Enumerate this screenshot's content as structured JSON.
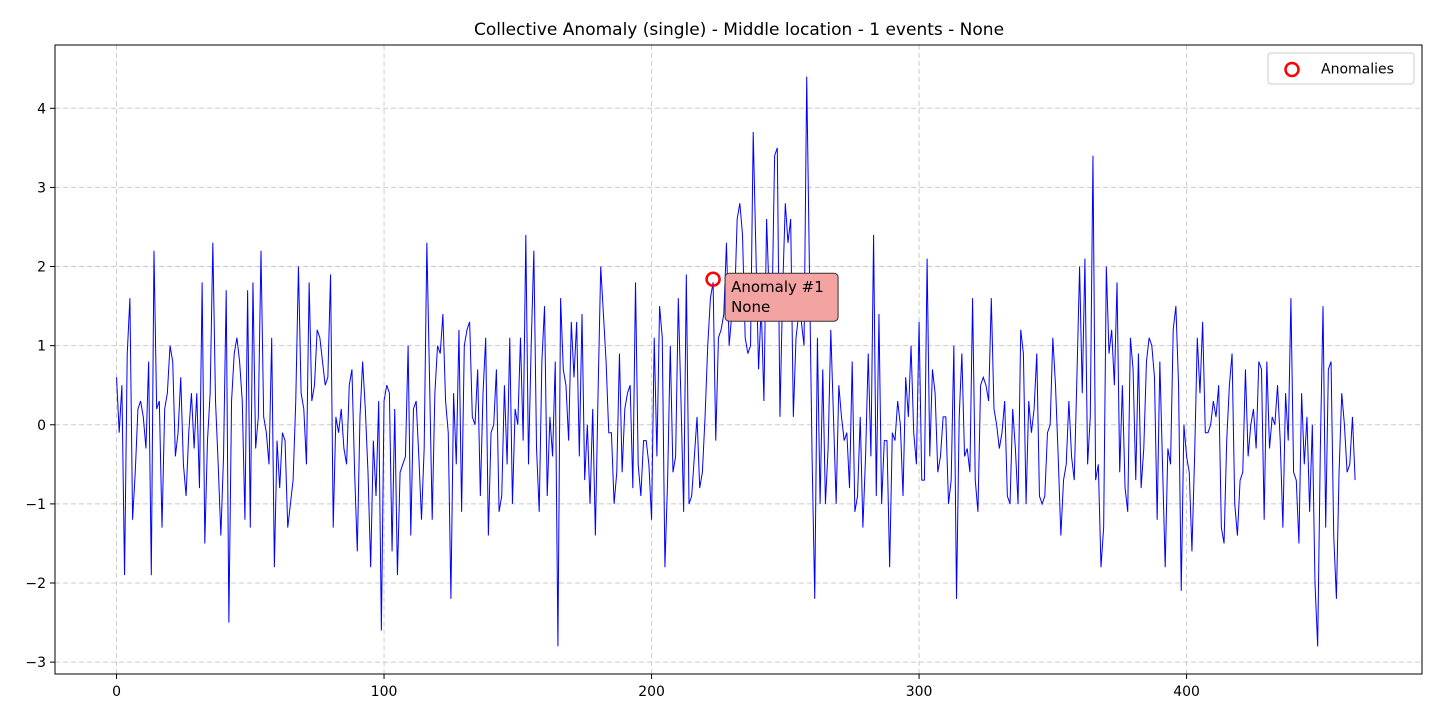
{
  "chart_data": {
    "type": "line",
    "title": "Collective Anomaly (single) - Middle location - 1 events - None",
    "xlabel": "",
    "ylabel": "",
    "xlim": [
      -23,
      488
    ],
    "ylim": [
      -3.15,
      4.8
    ],
    "x_ticks": [
      0,
      100,
      200,
      300,
      400
    ],
    "y_ticks": [
      -3,
      -2,
      -1,
      0,
      1,
      2,
      3,
      4
    ],
    "y_tick_labels": [
      "−3",
      "−2",
      "−1",
      "0",
      "1",
      "2",
      "3",
      "4"
    ],
    "grid": true,
    "legend_position": "top-right",
    "colors": {
      "line": "#0000ff",
      "anomaly": "#ff0000",
      "annotation_fill": "#f4a3a3",
      "grid": "#cccccc"
    },
    "series": [
      {
        "style": "line",
        "x_start": 0,
        "values": [
          0.6,
          -0.1,
          0.5,
          -1.9,
          0.9,
          1.6,
          -1.2,
          -0.6,
          0.2,
          0.3,
          0.1,
          -0.3,
          0.8,
          -1.9,
          2.2,
          0.2,
          0.3,
          -1.3,
          0.2,
          0.4,
          1.0,
          0.8,
          -0.4,
          -0.1,
          0.6,
          -0.5,
          -0.9,
          -0.1,
          0.4,
          -0.3,
          0.4,
          -0.8,
          1.8,
          -1.5,
          -0.2,
          0.4,
          2.3,
          0.3,
          -0.5,
          -1.4,
          -0.4,
          1.7,
          -2.5,
          0.3,
          0.9,
          1.1,
          0.8,
          0.3,
          -1.2,
          1.7,
          -1.3,
          1.8,
          -0.3,
          0.1,
          2.2,
          0.1,
          -0.1,
          -0.5,
          1.1,
          -1.8,
          -0.2,
          -0.8,
          -0.1,
          -0.2,
          -1.3,
          -1.0,
          -0.7,
          0.3,
          2.0,
          0.4,
          0.2,
          -0.5,
          1.8,
          0.3,
          0.5,
          1.2,
          1.1,
          0.8,
          0.5,
          0.6,
          1.9,
          -1.3,
          0.1,
          -0.1,
          0.2,
          -0.3,
          -0.5,
          0.5,
          0.7,
          -0.6,
          -1.6,
          0.1,
          0.8,
          0.2,
          -0.6,
          -1.8,
          -0.2,
          -0.9,
          0.3,
          -2.6,
          0.3,
          0.5,
          0.4,
          -1.6,
          0.2,
          -1.9,
          -0.6,
          -0.5,
          -0.4,
          1.0,
          -1.4,
          0.2,
          0.3,
          -0.4,
          -1.2,
          -0.3,
          2.3,
          0.6,
          -1.2,
          0.4,
          1.0,
          0.9,
          1.4,
          0.3,
          -0.1,
          -2.2,
          0.4,
          -0.5,
          1.2,
          -1.1,
          1.0,
          1.2,
          1.3,
          0.1,
          0.0,
          0.7,
          -0.9,
          0.4,
          1.1,
          -1.4,
          -0.1,
          0.0,
          0.7,
          -1.1,
          -0.9,
          0.5,
          -0.5,
          1.1,
          -1.0,
          0.2,
          0.0,
          1.1,
          -0.2,
          2.4,
          -0.5,
          1.0,
          2.2,
          -0.3,
          -1.1,
          0.8,
          1.5,
          -0.9,
          0.1,
          -0.4,
          0.8,
          -2.8,
          1.6,
          0.7,
          0.5,
          -0.2,
          1.3,
          0.6,
          1.3,
          -0.4,
          1.4,
          -0.7,
          0.0,
          -1.0,
          0.2,
          -1.4,
          0.4,
          2.0,
          1.4,
          0.8,
          -0.1,
          -0.1,
          -1.0,
          -0.6,
          0.9,
          -0.6,
          0.2,
          0.4,
          0.5,
          -0.8,
          1.8,
          -0.5,
          -0.9,
          -0.2,
          -0.2,
          -0.5,
          -1.2,
          1.1,
          -0.4,
          1.5,
          1.1,
          -1.8,
          -0.7,
          1.0,
          -0.6,
          -0.4,
          1.6,
          0.3,
          -1.1,
          1.9,
          -1.0,
          -0.9,
          -0.4,
          0.1,
          -0.8,
          -0.6,
          0.1,
          1.0,
          1.6,
          1.8,
          -0.2,
          1.1,
          1.2,
          1.4,
          2.3,
          1.0,
          1.4,
          1.5,
          2.6,
          2.8,
          2.4,
          1.1,
          0.9,
          1.0,
          3.7,
          2.2,
          0.7,
          1.5,
          0.3,
          2.6,
          1.6,
          1.4,
          3.4,
          3.5,
          0.1,
          1.7,
          2.8,
          2.3,
          2.6,
          0.1,
          1.1,
          1.4,
          1.3,
          1.0,
          4.4,
          2.0,
          -0.4,
          -2.2,
          1.1,
          -1.0,
          0.7,
          -1.0,
          -0.3,
          1.2,
          0.1,
          -1.0,
          0.5,
          0.1,
          -0.2,
          -0.1,
          -0.8,
          0.8,
          -1.1,
          -0.9,
          0.1,
          -1.3,
          -0.4,
          0.9,
          -0.4,
          2.4,
          -0.9,
          1.4,
          -1.0,
          -0.2,
          -0.2,
          -1.8,
          -0.1,
          -0.2,
          0.3,
          0.0,
          -0.9,
          0.6,
          0.1,
          1.0,
          -0.1,
          -0.5,
          1.3,
          -0.7,
          -0.7,
          2.1,
          -0.4,
          0.7,
          0.4,
          -0.6,
          -0.4,
          0.1,
          0.1,
          -1.0,
          -0.7,
          1.0,
          -2.2,
          0.1,
          0.9,
          -0.4,
          -0.3,
          -0.6,
          1.6,
          -0.7,
          -1.1,
          0.5,
          0.6,
          0.5,
          0.3,
          1.6,
          0.2,
          0.0,
          -0.3,
          -0.1,
          0.3,
          -0.9,
          -1.0,
          0.2,
          -0.3,
          -1.0,
          1.2,
          0.9,
          -1.0,
          0.3,
          -0.1,
          0.2,
          0.9,
          -0.9,
          -1.0,
          -0.9,
          -0.1,
          0.0,
          1.1,
          0.5,
          -0.4,
          -1.4,
          -0.7,
          -0.5,
          0.3,
          -0.4,
          -0.7,
          0.6,
          2.0,
          0.4,
          2.1,
          -0.5,
          0.1,
          3.4,
          -0.7,
          -0.5,
          -1.8,
          -1.3,
          2.0,
          0.9,
          1.2,
          0.5,
          1.8,
          -0.6,
          0.5,
          -0.8,
          -1.1,
          1.1,
          0.7,
          -0.7,
          0.9,
          -0.8,
          -0.3,
          0.8,
          1.1,
          1.0,
          0.6,
          -1.2,
          0.8,
          -0.5,
          -1.8,
          -0.3,
          -0.5,
          1.2,
          1.5,
          0.5,
          -2.1,
          0.0,
          -0.4,
          -0.6,
          -1.6,
          -0.4,
          1.1,
          0.4,
          1.3,
          -0.1,
          -0.1,
          0.0,
          0.3,
          0.1,
          0.5,
          -1.3,
          -1.5,
          -0.2,
          0.5,
          0.9,
          -1.0,
          -1.4,
          -0.7,
          -0.6,
          0.7,
          -0.4,
          0.0,
          0.2,
          -0.3,
          0.8,
          0.7,
          -1.2,
          0.8,
          -0.3,
          0.1,
          0.0,
          0.5,
          -0.2,
          -1.3,
          0.4,
          -0.2,
          1.6,
          -0.6,
          -0.7,
          -1.5,
          0.4,
          -0.5,
          0.1,
          -1.1,
          0.0,
          -2.0,
          -2.8,
          -0.3,
          1.5,
          -1.3,
          0.7,
          0.8,
          -1.4,
          -2.2,
          -0.6,
          0.4,
          0.0,
          -0.6,
          -0.5,
          0.1,
          -0.7
        ]
      },
      {
        "name": "Anomalies",
        "style": "scatter-hollow",
        "points": [
          {
            "x": 223,
            "y": 1.84
          }
        ]
      }
    ],
    "annotations": [
      {
        "x": 223,
        "y": 1.84,
        "text": [
          "Anomaly #1",
          "None"
        ]
      }
    ]
  }
}
